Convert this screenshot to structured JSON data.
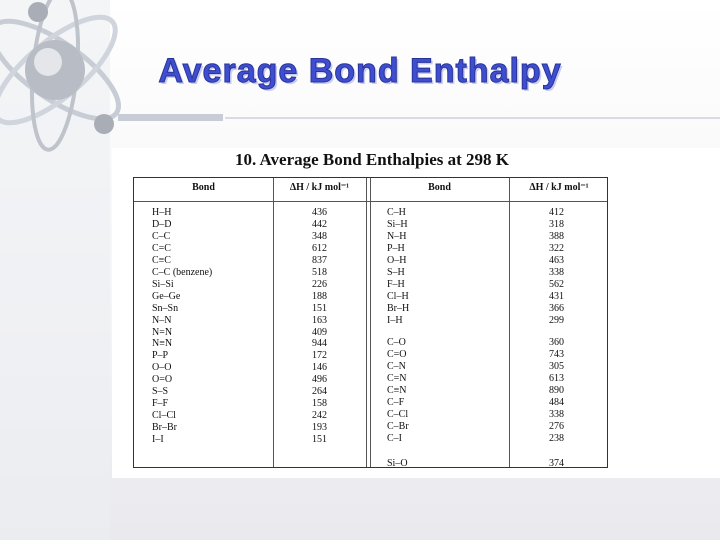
{
  "slide": {
    "title": "Average Bond Enthalpy"
  },
  "table": {
    "title": "10. Average Bond Enthalpies at 298 K",
    "headers": [
      "Bond",
      "ΔH / kJ mol⁻¹",
      "Bond",
      "ΔH / kJ mol⁻¹"
    ],
    "left": [
      [
        "H–H",
        436
      ],
      [
        "D–D",
        442
      ],
      [
        "C–C",
        348
      ],
      [
        "C=C",
        612
      ],
      [
        "C≡C",
        837
      ],
      [
        "C–C (benzene)",
        518
      ],
      [
        "Si–Si",
        226
      ],
      [
        "Ge–Ge",
        188
      ],
      [
        "Sn–Sn",
        151
      ],
      [
        "N–N",
        163
      ],
      [
        "N=N",
        409
      ],
      [
        "N≡N",
        944
      ],
      [
        "P–P",
        172
      ],
      [
        "O–O",
        146
      ],
      [
        "O=O",
        496
      ],
      [
        "S–S",
        264
      ],
      [
        "F–F",
        158
      ],
      [
        "Cl–Cl",
        242
      ],
      [
        "Br–Br",
        193
      ],
      [
        "I–I",
        151
      ]
    ],
    "right": [
      [
        [
          "C–H",
          412
        ],
        [
          "Si–H",
          318
        ],
        [
          "N–H",
          388
        ],
        [
          "P–H",
          322
        ],
        [
          "O–H",
          463
        ],
        [
          "S–H",
          338
        ],
        [
          "F–H",
          562
        ],
        [
          "Cl–H",
          431
        ],
        [
          "Br–H",
          366
        ],
        [
          "I–H",
          299
        ]
      ],
      [
        [
          "C–O",
          360
        ],
        [
          "C=O",
          743
        ],
        [
          "C–N",
          305
        ],
        [
          "C=N",
          613
        ],
        [
          "C≡N",
          890
        ],
        [
          "C–F",
          484
        ],
        [
          "C–Cl",
          338
        ],
        [
          "C–Br",
          276
        ],
        [
          "C–I",
          238
        ]
      ],
      [
        [
          "Si–O",
          374
        ]
      ]
    ]
  }
}
